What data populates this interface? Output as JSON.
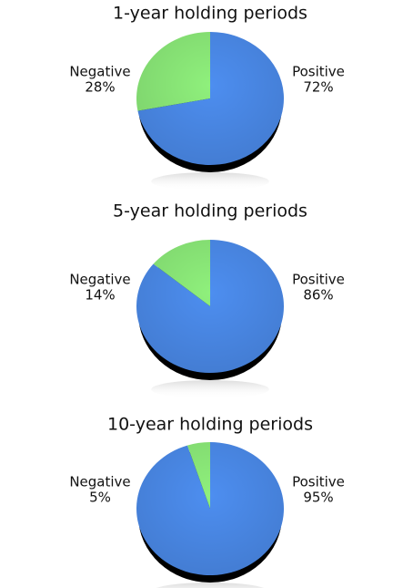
{
  "chart_data": [
    {
      "type": "pie",
      "title": "1-year holding periods",
      "categories": [
        "Positive",
        "Negative"
      ],
      "values": [
        72,
        28
      ],
      "value_labels": [
        "72%",
        "28%"
      ],
      "colors": [
        "#4d8ef0",
        "#8ff07c"
      ]
    },
    {
      "type": "pie",
      "title": "5-year holding periods",
      "categories": [
        "Positive",
        "Negative"
      ],
      "values": [
        86,
        14
      ],
      "value_labels": [
        "86%",
        "14%"
      ],
      "colors": [
        "#4d8ef0",
        "#8ff07c"
      ]
    },
    {
      "type": "pie",
      "title": "10-year holding periods",
      "categories": [
        "Positive",
        "Negative"
      ],
      "values": [
        95,
        5
      ],
      "value_labels": [
        "95%",
        "5%"
      ],
      "colors": [
        "#4d8ef0",
        "#8ff07c"
      ]
    }
  ]
}
